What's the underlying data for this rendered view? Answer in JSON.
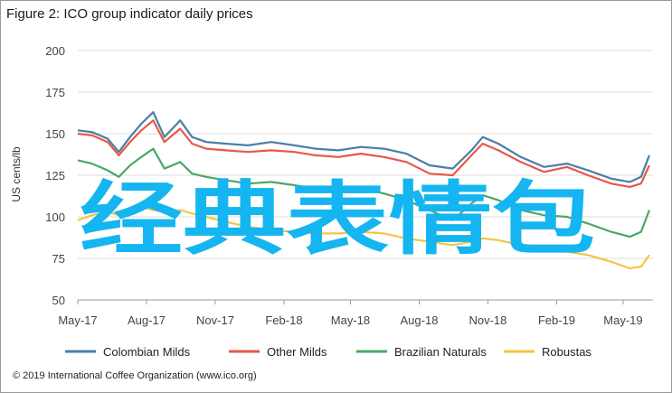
{
  "title": "Figure 2: ICO group indicator daily prices",
  "credit": "© 2019 International Coffee Organization (www.ico.org)",
  "overlay_text": "经典表情包",
  "chart_data": {
    "type": "line",
    "ylabel": "US cents/lb",
    "ylim": [
      50,
      200
    ],
    "yticks": [
      50,
      75,
      100,
      125,
      150,
      175,
      200
    ],
    "xlim": [
      "2017-05-01",
      "2019-06-10"
    ],
    "xticks": [
      {
        "label": "May-17",
        "date": "2017-05-01"
      },
      {
        "label": "Aug-17",
        "date": "2017-08-01"
      },
      {
        "label": "Nov-17",
        "date": "2017-11-01"
      },
      {
        "label": "Feb-18",
        "date": "2018-02-01"
      },
      {
        "label": "May-18",
        "date": "2018-05-01"
      },
      {
        "label": "Aug-18",
        "date": "2018-08-01"
      },
      {
        "label": "Nov-18",
        "date": "2018-11-01"
      },
      {
        "label": "Feb-19",
        "date": "2019-02-01"
      },
      {
        "label": "May-19",
        "date": "2019-05-01"
      }
    ],
    "grid": "horizontal",
    "legend": "bottom",
    "series": [
      {
        "name": "Colombian Milds",
        "color": "#4a7ea6",
        "points": [
          [
            "2017-05-01",
            152
          ],
          [
            "2017-05-20",
            151
          ],
          [
            "2017-06-10",
            147
          ],
          [
            "2017-06-25",
            139
          ],
          [
            "2017-07-10",
            148
          ],
          [
            "2017-07-25",
            156
          ],
          [
            "2017-08-10",
            163
          ],
          [
            "2017-08-25",
            148
          ],
          [
            "2017-09-15",
            158
          ],
          [
            "2017-10-01",
            148
          ],
          [
            "2017-10-20",
            145
          ],
          [
            "2017-11-15",
            144
          ],
          [
            "2017-12-15",
            143
          ],
          [
            "2018-01-15",
            145
          ],
          [
            "2018-02-15",
            143
          ],
          [
            "2018-03-15",
            141
          ],
          [
            "2018-04-15",
            140
          ],
          [
            "2018-05-15",
            142
          ],
          [
            "2018-06-15",
            141
          ],
          [
            "2018-07-15",
            138
          ],
          [
            "2018-08-15",
            131
          ],
          [
            "2018-09-15",
            129
          ],
          [
            "2018-10-10",
            140
          ],
          [
            "2018-10-25",
            148
          ],
          [
            "2018-11-15",
            144
          ],
          [
            "2018-12-15",
            136
          ],
          [
            "2019-01-15",
            130
          ],
          [
            "2019-02-15",
            132
          ],
          [
            "2019-03-15",
            128
          ],
          [
            "2019-04-15",
            123
          ],
          [
            "2019-05-10",
            121
          ],
          [
            "2019-05-25",
            124
          ],
          [
            "2019-06-05",
            137
          ]
        ]
      },
      {
        "name": "Other Milds",
        "color": "#e8574a",
        "points": [
          [
            "2017-05-01",
            150
          ],
          [
            "2017-05-20",
            149
          ],
          [
            "2017-06-10",
            145
          ],
          [
            "2017-06-25",
            137
          ],
          [
            "2017-07-10",
            145
          ],
          [
            "2017-07-25",
            152
          ],
          [
            "2017-08-10",
            158
          ],
          [
            "2017-08-25",
            145
          ],
          [
            "2017-09-15",
            153
          ],
          [
            "2017-10-01",
            144
          ],
          [
            "2017-10-20",
            141
          ],
          [
            "2017-11-15",
            140
          ],
          [
            "2017-12-15",
            139
          ],
          [
            "2018-01-15",
            140
          ],
          [
            "2018-02-15",
            139
          ],
          [
            "2018-03-15",
            137
          ],
          [
            "2018-04-15",
            136
          ],
          [
            "2018-05-15",
            138
          ],
          [
            "2018-06-15",
            136
          ],
          [
            "2018-07-15",
            133
          ],
          [
            "2018-08-15",
            126
          ],
          [
            "2018-09-15",
            125
          ],
          [
            "2018-10-10",
            137
          ],
          [
            "2018-10-25",
            144
          ],
          [
            "2018-11-15",
            140
          ],
          [
            "2018-12-15",
            133
          ],
          [
            "2019-01-15",
            127
          ],
          [
            "2019-02-15",
            130
          ],
          [
            "2019-03-15",
            125
          ],
          [
            "2019-04-15",
            120
          ],
          [
            "2019-05-10",
            118
          ],
          [
            "2019-05-25",
            120
          ],
          [
            "2019-06-05",
            131
          ]
        ]
      },
      {
        "name": "Brazilian Naturals",
        "color": "#4aa866",
        "points": [
          [
            "2017-05-01",
            134
          ],
          [
            "2017-05-20",
            132
          ],
          [
            "2017-06-10",
            128
          ],
          [
            "2017-06-25",
            124
          ],
          [
            "2017-07-10",
            131
          ],
          [
            "2017-07-25",
            136
          ],
          [
            "2017-08-10",
            141
          ],
          [
            "2017-08-25",
            129
          ],
          [
            "2017-09-15",
            133
          ],
          [
            "2017-10-01",
            126
          ],
          [
            "2017-10-20",
            124
          ],
          [
            "2017-11-15",
            122
          ],
          [
            "2017-12-15",
            120
          ],
          [
            "2018-01-15",
            121
          ],
          [
            "2018-02-15",
            119
          ],
          [
            "2018-03-15",
            117
          ],
          [
            "2018-04-15",
            116
          ],
          [
            "2018-05-15",
            117
          ],
          [
            "2018-06-15",
            114
          ],
          [
            "2018-07-15",
            110
          ],
          [
            "2018-08-15",
            104
          ],
          [
            "2018-09-15",
            98
          ],
          [
            "2018-10-10",
            108
          ],
          [
            "2018-10-25",
            113
          ],
          [
            "2018-11-15",
            110
          ],
          [
            "2018-12-15",
            104
          ],
          [
            "2019-01-15",
            101
          ],
          [
            "2019-02-15",
            100
          ],
          [
            "2019-03-15",
            96
          ],
          [
            "2019-04-15",
            91
          ],
          [
            "2019-05-10",
            88
          ],
          [
            "2019-05-25",
            91
          ],
          [
            "2019-06-05",
            104
          ]
        ]
      },
      {
        "name": "Robustas",
        "color": "#f5c542",
        "points": [
          [
            "2017-05-01",
            98
          ],
          [
            "2017-05-20",
            101
          ],
          [
            "2017-06-10",
            103
          ],
          [
            "2017-06-25",
            101
          ],
          [
            "2017-07-10",
            105
          ],
          [
            "2017-07-25",
            106
          ],
          [
            "2017-08-10",
            104
          ],
          [
            "2017-08-25",
            103
          ],
          [
            "2017-09-15",
            104
          ],
          [
            "2017-10-01",
            102
          ],
          [
            "2017-10-20",
            100
          ],
          [
            "2017-11-15",
            97
          ],
          [
            "2017-12-15",
            94
          ],
          [
            "2018-01-15",
            92
          ],
          [
            "2018-02-15",
            91
          ],
          [
            "2018-03-15",
            90
          ],
          [
            "2018-04-15",
            90
          ],
          [
            "2018-05-15",
            91
          ],
          [
            "2018-06-15",
            90
          ],
          [
            "2018-07-15",
            87
          ],
          [
            "2018-08-15",
            85
          ],
          [
            "2018-09-15",
            83
          ],
          [
            "2018-10-10",
            85
          ],
          [
            "2018-10-25",
            87
          ],
          [
            "2018-11-15",
            86
          ],
          [
            "2018-12-15",
            83
          ],
          [
            "2019-01-15",
            80
          ],
          [
            "2019-02-15",
            79
          ],
          [
            "2019-03-15",
            77
          ],
          [
            "2019-04-15",
            73
          ],
          [
            "2019-05-10",
            69
          ],
          [
            "2019-05-25",
            70
          ],
          [
            "2019-06-05",
            77
          ]
        ]
      }
    ]
  }
}
